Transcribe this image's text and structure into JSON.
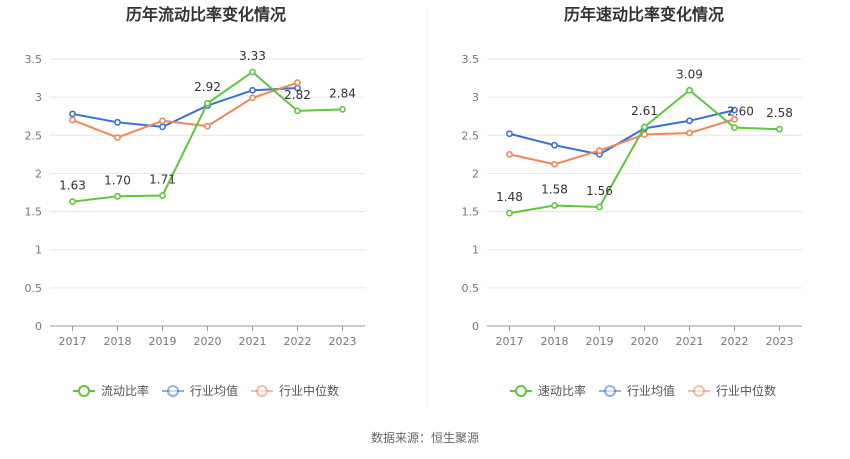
{
  "source_label": "数据来源：恒生聚源",
  "colors": {
    "company": "#5cc93a",
    "avg": "#3a6fd6",
    "median": "#f0875a"
  },
  "chart_data": [
    {
      "type": "line",
      "title": "历年流动比率变化情况",
      "categories": [
        "2017",
        "2018",
        "2019",
        "2020",
        "2021",
        "2022",
        "2023"
      ],
      "ylim": [
        0,
        3.5
      ],
      "yticks": [
        "0",
        "0.5",
        "1",
        "1.5",
        "2",
        "2.5",
        "3",
        "3.5"
      ],
      "legend_position": "bottom",
      "series": [
        {
          "name": "流动比率",
          "key": "company",
          "values": [
            1.63,
            1.7,
            1.71,
            2.92,
            3.33,
            2.82,
            2.84
          ],
          "labels": [
            "1.63",
            "1.70",
            "1.71",
            "2.92",
            "3.33",
            "2.82",
            "2.84"
          ]
        },
        {
          "name": "行业均值",
          "key": "avg",
          "values": [
            2.78,
            2.67,
            2.61,
            2.89,
            3.09,
            3.12,
            null
          ]
        },
        {
          "name": "行业中位数",
          "key": "median",
          "values": [
            2.7,
            2.47,
            2.69,
            2.62,
            2.99,
            3.19,
            null
          ]
        }
      ]
    },
    {
      "type": "line",
      "title": "历年速动比率变化情况",
      "categories": [
        "2017",
        "2018",
        "2019",
        "2020",
        "2021",
        "2022",
        "2023"
      ],
      "ylim": [
        0,
        3.5
      ],
      "yticks": [
        "0",
        "0.5",
        "1",
        "1.5",
        "2",
        "2.5",
        "3",
        "3.5"
      ],
      "legend_position": "bottom",
      "series": [
        {
          "name": "速动比率",
          "key": "company",
          "values": [
            1.48,
            1.58,
            1.56,
            2.61,
            3.09,
            2.6,
            2.58
          ],
          "labels": [
            "1.48",
            "1.58",
            "1.56",
            "2.61",
            "3.09",
            "2.60",
            "2.58"
          ]
        },
        {
          "name": "行业均值",
          "key": "avg",
          "values": [
            2.52,
            2.37,
            2.25,
            2.59,
            2.69,
            2.83,
            null
          ]
        },
        {
          "name": "行业中位数",
          "key": "median",
          "values": [
            2.25,
            2.12,
            2.3,
            2.51,
            2.53,
            2.71,
            null
          ]
        }
      ]
    }
  ]
}
